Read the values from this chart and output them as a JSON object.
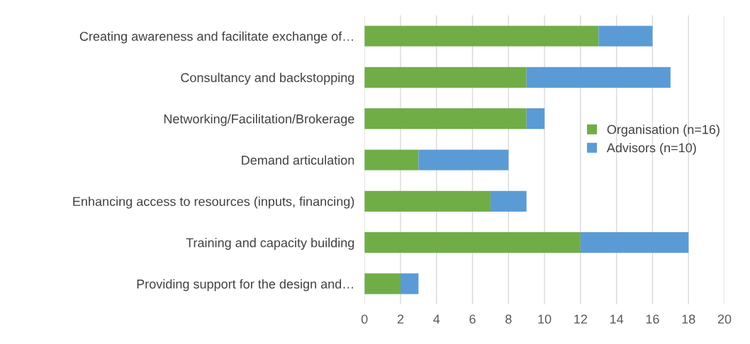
{
  "chart_data": {
    "type": "bar",
    "orientation": "horizontal",
    "stacked": true,
    "categories": [
      "Creating awareness and facilitate exchange of…",
      "Consultancy and backstopping",
      "Networking/Facilitation/Brokerage",
      "Demand articulation",
      "Enhancing access to resources (inputs, financing)",
      "Training and capacity building",
      "Providing support for the design and…"
    ],
    "series": [
      {
        "name": "Organisation (n=16)",
        "color": "#70ad47",
        "values": [
          13,
          9,
          9,
          3,
          7,
          12,
          2
        ]
      },
      {
        "name": "Advisors (n=10)",
        "color": "#5b9bd5",
        "values": [
          3,
          8,
          1,
          5,
          2,
          6,
          1
        ]
      }
    ],
    "xlim": [
      0,
      20
    ],
    "xticks": [
      0,
      2,
      4,
      6,
      8,
      10,
      12,
      14,
      16,
      18,
      20
    ],
    "grid": "x",
    "legend": "right"
  }
}
